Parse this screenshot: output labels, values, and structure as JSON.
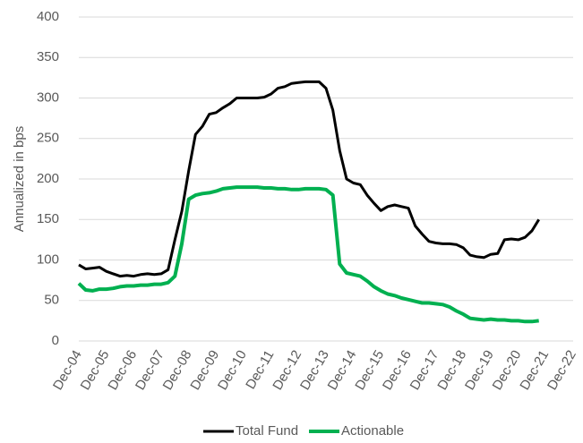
{
  "chart_data": {
    "type": "line",
    "y_label": "Annualized in bps",
    "x": [
      "Dec-04",
      "Mar-05",
      "Jun-05",
      "Sep-05",
      "Dec-05",
      "Mar-06",
      "Jun-06",
      "Sep-06",
      "Dec-06",
      "Mar-07",
      "Jun-07",
      "Sep-07",
      "Dec-07",
      "Mar-08",
      "Jun-08",
      "Sep-08",
      "Dec-08",
      "Mar-09",
      "Jun-09",
      "Sep-09",
      "Dec-09",
      "Mar-10",
      "Jun-10",
      "Sep-10",
      "Dec-10",
      "Mar-11",
      "Jun-11",
      "Sep-11",
      "Dec-11",
      "Mar-12",
      "Jun-12",
      "Sep-12",
      "Dec-12",
      "Mar-13",
      "Jun-13",
      "Sep-13",
      "Dec-13",
      "Mar-14",
      "Jun-14",
      "Sep-14",
      "Dec-14",
      "Mar-15",
      "Jun-15",
      "Sep-15",
      "Dec-15",
      "Mar-16",
      "Jun-16",
      "Sep-16",
      "Dec-16",
      "Mar-17",
      "Jun-17",
      "Sep-17",
      "Dec-17",
      "Mar-18",
      "Jun-18",
      "Sep-18",
      "Dec-18",
      "Mar-19",
      "Jun-19",
      "Sep-19",
      "Dec-19",
      "Mar-20",
      "Jun-20",
      "Sep-20",
      "Dec-20",
      "Mar-21",
      "Jun-21",
      "Sep-21"
    ],
    "series": [
      {
        "name": "Total Fund",
        "color": "#000000",
        "values": [
          94,
          89,
          90,
          91,
          86,
          83,
          80,
          81,
          80,
          82,
          83,
          82,
          83,
          88,
          125,
          160,
          210,
          255,
          265,
          280,
          282,
          288,
          293,
          300,
          300,
          300,
          300,
          301,
          305,
          312,
          314,
          318,
          319,
          320,
          320,
          320,
          312,
          285,
          235,
          200,
          195,
          193,
          180,
          170,
          161,
          166,
          168,
          166,
          164,
          142,
          132,
          123,
          121,
          120,
          120,
          119,
          115,
          106,
          104,
          103,
          107,
          108,
          125,
          126,
          125,
          128,
          136,
          150
        ]
      },
      {
        "name": "Actionable",
        "color": "#00b050",
        "values": [
          71,
          63,
          62,
          64,
          64,
          65,
          67,
          68,
          68,
          69,
          69,
          70,
          70,
          72,
          80,
          120,
          175,
          180,
          182,
          183,
          185,
          188,
          189,
          190,
          190,
          190,
          190,
          189,
          189,
          188,
          188,
          187,
          187,
          188,
          188,
          188,
          187,
          180,
          95,
          84,
          82,
          80,
          74,
          67,
          62,
          58,
          56,
          53,
          51,
          49,
          47,
          47,
          46,
          45,
          42,
          37,
          33,
          28,
          27,
          26,
          27,
          26,
          26,
          25,
          25,
          24,
          24,
          25
        ]
      }
    ],
    "xlim": [
      "Dec-04",
      "Dec-22"
    ],
    "xticks": [
      "Dec-04",
      "Dec-05",
      "Dec-06",
      "Dec-07",
      "Dec-08",
      "Dec-09",
      "Dec-10",
      "Dec-11",
      "Dec-12",
      "Dec-13",
      "Dec-14",
      "Dec-15",
      "Dec-16",
      "Dec-17",
      "Dec-18",
      "Dec-19",
      "Dec-20",
      "Dec-21",
      "Dec-22"
    ],
    "ylim": [
      0,
      400
    ],
    "yticks": [
      0,
      50,
      100,
      150,
      200,
      250,
      300,
      350,
      400
    ],
    "grid": true,
    "legend": "bottom"
  }
}
